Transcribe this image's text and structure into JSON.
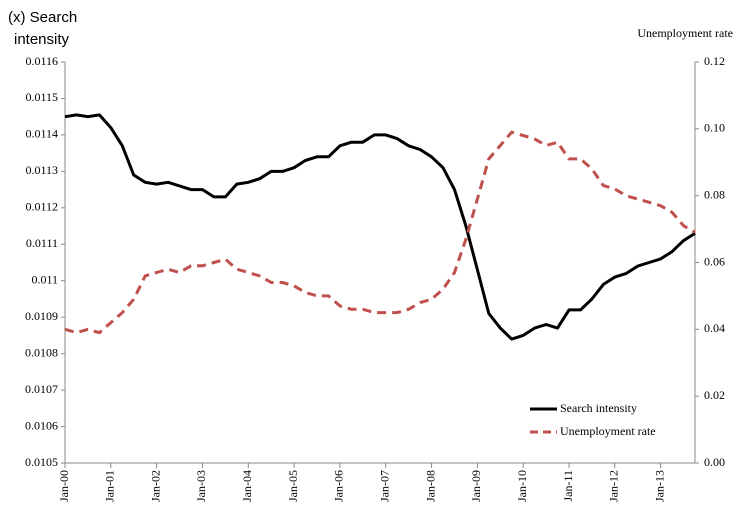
{
  "chart_data": {
    "type": "line",
    "y_label": "(x) Search intensity",
    "y2_label": "Unemployment rate",
    "categories": [
      "Jan-00",
      null,
      null,
      null,
      "Jan-01",
      null,
      null,
      null,
      "Jan-02",
      null,
      null,
      null,
      "Jan-03",
      null,
      null,
      null,
      "Jan-04",
      null,
      null,
      null,
      "Jan-05",
      null,
      null,
      null,
      "Jan-06",
      null,
      null,
      null,
      "Jan-07",
      null,
      null,
      null,
      "Jan-08",
      null,
      null,
      null,
      "Jan-09",
      null,
      null,
      null,
      "Jan-10",
      null,
      null,
      null,
      "Jan-11",
      null,
      null,
      null,
      "Jan-12",
      null,
      null,
      null,
      "Jan-13",
      null,
      null,
      null
    ],
    "series": [
      {
        "name": "Search intensity",
        "color": "#000000",
        "dash": false,
        "values": [
          0.01145,
          0.011455,
          0.01145,
          0.011455,
          0.01142,
          0.01137,
          0.01129,
          0.01127,
          0.011265,
          0.01127,
          0.01126,
          0.01125,
          0.01125,
          0.01123,
          0.01123,
          0.011265,
          0.01127,
          0.01128,
          0.0113,
          0.0113,
          0.01131,
          0.01133,
          0.01134,
          0.01134,
          0.01137,
          0.01138,
          0.01138,
          0.0114,
          0.0114,
          0.01139,
          0.01137,
          0.01136,
          0.01134,
          0.01131,
          0.01125,
          0.01115,
          0.01103,
          0.01091,
          0.01087,
          0.01084,
          0.01085,
          0.01087,
          0.01088,
          0.01087,
          0.01092,
          0.01092,
          0.01095,
          0.01099,
          0.01101,
          0.01102,
          0.01104,
          0.01105,
          0.01106,
          0.01108,
          0.01111,
          0.01113
        ]
      },
      {
        "name": "Unemployment rate",
        "color": "#c0504d",
        "dash": true,
        "axis": "y2",
        "values": [
          0.04,
          0.039,
          0.04,
          0.039,
          0.042,
          0.045,
          0.049,
          0.056,
          0.057,
          0.058,
          0.057,
          0.059,
          0.059,
          0.06,
          0.061,
          0.058,
          0.057,
          0.056,
          0.054,
          0.054,
          0.053,
          0.051,
          0.05,
          0.05,
          0.047,
          0.046,
          0.046,
          0.045,
          0.045,
          0.045,
          0.046,
          0.048,
          0.049,
          0.052,
          0.057,
          0.067,
          0.079,
          0.091,
          0.095,
          0.099,
          0.098,
          0.097,
          0.095,
          0.096,
          0.091,
          0.091,
          0.088,
          0.083,
          0.082,
          0.08,
          0.079,
          0.078,
          0.077,
          0.075,
          0.071,
          0.069
        ]
      }
    ],
    "ylim": [
      0.0105,
      0.0116
    ],
    "yticks": [
      0.0105,
      0.0106,
      0.0107,
      0.0108,
      0.0109,
      0.011,
      {
        "value": 0.0111,
        "label": "0.0111"
      },
      0.0112,
      0.0113,
      0.0114,
      0.0115,
      0.0116
    ],
    "y2lim": [
      0,
      0.12
    ],
    "y2ticks": [
      {
        "value": 0,
        "label": "0.00"
      },
      0.02,
      0.04,
      0.06,
      0.08,
      {
        "value": 0.1,
        "label": "0.10"
      },
      0.12
    ],
    "legend": "lower right"
  }
}
